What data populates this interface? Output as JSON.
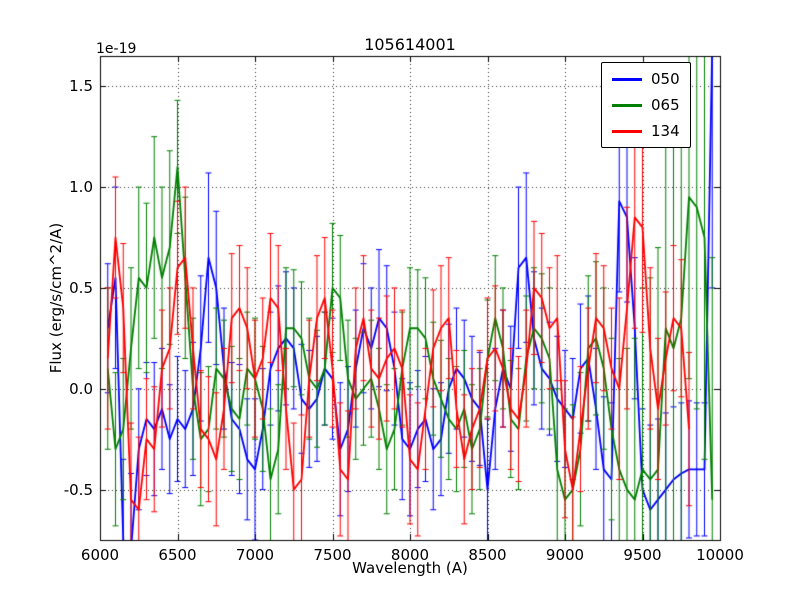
{
  "title": "105614001",
  "axes": {
    "xlabel": "Wavelength (A)",
    "ylabel": "Flux (erg/s/cm^2/A)",
    "offset_text": "1e-19"
  },
  "legend": {
    "entries": [
      {
        "label": "050",
        "color": "#0000ff"
      },
      {
        "label": "065",
        "color": "#008000"
      },
      {
        "label": "134",
        "color": "#ff0000"
      }
    ]
  },
  "chart_data": {
    "type": "line",
    "title": "105614001",
    "xlabel": "Wavelength (A)",
    "ylabel": "Flux (erg/s/cm^2/A)",
    "y_scale_factor": "1e-19",
    "xlim": [
      6000,
      10000
    ],
    "ylim": [
      -0.75,
      1.65
    ],
    "xticks": [
      6000,
      6500,
      7000,
      7500,
      8000,
      8500,
      9000,
      9500,
      10000
    ],
    "yticks": [
      -0.5,
      0.0,
      0.5,
      1.0,
      1.5
    ],
    "grid": true,
    "grid_style": "dotted",
    "legend_position": "upper right",
    "error_bars": true,
    "series": [
      {
        "name": "050",
        "color": "#0000ff",
        "x": [
          6050,
          6100,
          6150,
          6200,
          6250,
          6300,
          6350,
          6400,
          6450,
          6500,
          6550,
          6600,
          6650,
          6700,
          6750,
          6800,
          6850,
          6900,
          6950,
          7000,
          7050,
          7100,
          7150,
          7200,
          7250,
          7300,
          7350,
          7400,
          7450,
          7500,
          7550,
          7600,
          7650,
          7700,
          7750,
          7800,
          7850,
          7900,
          7950,
          8000,
          8050,
          8100,
          8150,
          8200,
          8250,
          8300,
          8350,
          8400,
          8450,
          8500,
          8550,
          8600,
          8650,
          8700,
          8750,
          8800,
          8850,
          8900,
          8950,
          9000,
          9050,
          9100,
          9150,
          9200,
          9250,
          9300,
          9350,
          9400,
          9450,
          9500,
          9550,
          9600,
          9650,
          9700,
          9750,
          9800,
          9850,
          9900,
          9950
        ],
        "y": [
          0.3,
          0.55,
          -0.75,
          -0.8,
          -0.3,
          -0.15,
          -0.2,
          -0.1,
          -0.25,
          -0.15,
          -0.2,
          -0.1,
          0.2,
          0.65,
          0.5,
          0.1,
          -0.15,
          -0.2,
          -0.35,
          -0.4,
          -0.2,
          0.1,
          0.2,
          0.25,
          0.2,
          -0.05,
          -0.1,
          -0.05,
          0.1,
          0.05,
          -0.3,
          -0.2,
          0.1,
          0.3,
          0.2,
          0.35,
          0.3,
          0.1,
          -0.25,
          -0.3,
          -0.2,
          -0.15,
          -0.3,
          -0.25,
          0.0,
          0.1,
          0.05,
          -0.05,
          -0.1,
          -0.5,
          -0.1,
          0.1,
          0.0,
          0.6,
          0.65,
          0.25,
          0.1,
          0.05,
          -0.05,
          -0.1,
          -0.15,
          0.1,
          0.15,
          -0.1,
          -0.4,
          -0.45,
          0.93,
          0.85,
          0.3,
          -0.5,
          -0.6,
          -0.55,
          -0.5,
          -0.45,
          -0.42,
          -0.4,
          -0.4,
          -0.4,
          1.7
        ],
        "yerr": [
          0.32,
          0.45,
          0.4,
          0.38,
          0.3,
          0.28,
          0.33,
          0.3,
          0.27,
          0.31,
          0.29,
          0.33,
          0.36,
          0.42,
          0.38,
          0.3,
          0.28,
          0.32,
          0.3,
          0.35,
          0.3,
          0.28,
          0.31,
          0.33,
          0.3,
          0.27,
          0.29,
          0.31,
          0.28,
          0.3,
          0.33,
          0.31,
          0.29,
          0.32,
          0.3,
          0.34,
          0.31,
          0.28,
          0.3,
          0.33,
          0.29,
          0.31,
          0.3,
          0.28,
          0.32,
          0.3,
          0.29,
          0.31,
          0.28,
          0.35,
          0.3,
          0.29,
          0.31,
          0.4,
          0.42,
          0.33,
          0.3,
          0.28,
          0.31,
          0.29,
          0.3,
          0.32,
          0.31,
          0.3,
          0.36,
          0.38,
          0.45,
          0.42,
          0.35,
          0.4,
          0.42,
          0.4,
          0.38,
          0.36,
          0.35,
          0.34,
          0.33,
          0.33,
          1.2
        ]
      },
      {
        "name": "065",
        "color": "#008000",
        "x": [
          6050,
          6100,
          6150,
          6200,
          6250,
          6300,
          6350,
          6400,
          6450,
          6500,
          6550,
          6600,
          6650,
          6700,
          6750,
          6800,
          6850,
          6900,
          6950,
          7000,
          7050,
          7100,
          7150,
          7200,
          7250,
          7300,
          7350,
          7400,
          7450,
          7500,
          7550,
          7600,
          7650,
          7700,
          7750,
          7800,
          7850,
          7900,
          7950,
          8000,
          8050,
          8100,
          8150,
          8200,
          8250,
          8300,
          8350,
          8400,
          8450,
          8500,
          8550,
          8600,
          8650,
          8700,
          8750,
          8800,
          8850,
          8900,
          8950,
          9000,
          9050,
          9100,
          9150,
          9200,
          9250,
          9300,
          9350,
          9400,
          9450,
          9500,
          9550,
          9600,
          9650,
          9700,
          9750,
          9800,
          9850,
          9900,
          9950
        ],
        "y": [
          0.1,
          -0.3,
          -0.2,
          0.2,
          0.55,
          0.5,
          0.75,
          0.55,
          0.7,
          1.1,
          0.55,
          0.0,
          -0.25,
          -0.2,
          0.1,
          0.05,
          -0.1,
          -0.15,
          0.1,
          0.05,
          -0.1,
          -0.45,
          -0.3,
          0.3,
          0.3,
          0.25,
          0.05,
          0.0,
          0.1,
          0.5,
          0.45,
          0.05,
          -0.05,
          0.0,
          0.05,
          -0.1,
          -0.3,
          -0.2,
          0.1,
          0.3,
          0.3,
          0.25,
          0.05,
          -0.05,
          -0.15,
          -0.2,
          -0.1,
          -0.3,
          -0.2,
          0.15,
          0.35,
          0.2,
          -0.15,
          -0.2,
          0.15,
          0.3,
          0.25,
          0.15,
          -0.4,
          -0.55,
          -0.5,
          -0.3,
          0.2,
          0.25,
          0.1,
          -0.2,
          -0.4,
          -0.5,
          -0.55,
          -0.4,
          -0.45,
          -0.4,
          0.3,
          0.2,
          0.35,
          0.95,
          0.9,
          0.75,
          -0.55
        ],
        "yerr": [
          0.4,
          0.38,
          0.35,
          0.4,
          0.45,
          0.42,
          0.5,
          0.45,
          0.48,
          0.33,
          0.4,
          0.35,
          0.33,
          0.31,
          0.3,
          0.29,
          0.31,
          0.3,
          0.28,
          0.3,
          0.31,
          0.35,
          0.32,
          0.3,
          0.29,
          0.28,
          0.3,
          0.29,
          0.28,
          0.32,
          0.31,
          0.29,
          0.3,
          0.28,
          0.29,
          0.3,
          0.32,
          0.3,
          0.28,
          0.3,
          0.29,
          0.3,
          0.28,
          0.29,
          0.3,
          0.31,
          0.29,
          0.32,
          0.3,
          0.29,
          0.31,
          0.3,
          0.29,
          0.3,
          0.31,
          0.3,
          0.32,
          0.35,
          0.4,
          0.45,
          0.42,
          0.38,
          0.36,
          0.38,
          0.4,
          0.45,
          0.55,
          0.7,
          0.8,
          0.9,
          1.0,
          1.1,
          1.2,
          1.1,
          1.15,
          0.9,
          1.0,
          1.1,
          1.2
        ]
      },
      {
        "name": "134",
        "color": "#ff0000",
        "x": [
          6050,
          6100,
          6150,
          6200,
          6250,
          6300,
          6350,
          6400,
          6450,
          6500,
          6550,
          6600,
          6650,
          6700,
          6750,
          6800,
          6850,
          6900,
          6950,
          7000,
          7050,
          7100,
          7150,
          7200,
          7250,
          7300,
          7350,
          7400,
          7450,
          7500,
          7550,
          7600,
          7650,
          7700,
          7750,
          7800,
          7850,
          7900,
          7950,
          8000,
          8050,
          8100,
          8150,
          8200,
          8250,
          8300,
          8350,
          8400,
          8450,
          8500,
          8550,
          8600,
          8650,
          8700,
          8750,
          8800,
          8850,
          8900,
          8950,
          9000,
          9050,
          9100,
          9150,
          9200,
          9250,
          9300,
          9350,
          9400,
          9450,
          9500,
          9550,
          9600,
          9650,
          9700,
          9750,
          9800
        ],
        "y": [
          0.15,
          0.75,
          0.4,
          -0.55,
          -0.6,
          -0.25,
          -0.3,
          0.1,
          0.2,
          0.6,
          0.65,
          0.2,
          -0.2,
          -0.25,
          -0.35,
          -0.1,
          0.35,
          0.4,
          0.3,
          0.05,
          0.15,
          0.45,
          0.4,
          -0.1,
          -0.5,
          -0.45,
          0.05,
          0.35,
          0.45,
          0.1,
          -0.4,
          -0.45,
          0.2,
          0.35,
          0.1,
          0.05,
          0.15,
          0.2,
          0.1,
          -0.35,
          -0.4,
          -0.1,
          0.2,
          0.3,
          0.35,
          -0.1,
          -0.35,
          -0.2,
          -0.1,
          0.15,
          0.2,
          0.1,
          -0.1,
          -0.15,
          0.1,
          0.5,
          0.45,
          0.3,
          0.35,
          -0.3,
          -0.5,
          -0.2,
          0.1,
          0.35,
          0.3,
          0.1,
          0.0,
          0.4,
          0.85,
          0.8,
          0.2,
          -0.1,
          0.15,
          0.35,
          0.3,
          -0.2
        ],
        "yerr": [
          0.35,
          0.3,
          0.32,
          0.38,
          0.36,
          0.3,
          0.31,
          0.29,
          0.3,
          0.33,
          0.35,
          0.3,
          0.29,
          0.31,
          0.33,
          0.3,
          0.32,
          0.31,
          0.3,
          0.29,
          0.3,
          0.32,
          0.31,
          0.3,
          0.33,
          0.32,
          0.29,
          0.31,
          0.3,
          0.29,
          0.33,
          0.34,
          0.3,
          0.31,
          0.29,
          0.3,
          0.31,
          0.3,
          0.29,
          0.32,
          0.33,
          0.3,
          0.29,
          0.31,
          0.3,
          0.29,
          0.32,
          0.3,
          0.29,
          0.3,
          0.31,
          0.29,
          0.3,
          0.31,
          0.29,
          0.33,
          0.32,
          0.3,
          0.31,
          0.34,
          0.36,
          0.31,
          0.3,
          0.32,
          0.31,
          0.3,
          0.45,
          0.5,
          0.55,
          0.52,
          0.4,
          0.35,
          0.33,
          0.36,
          0.34,
          0.38
        ]
      }
    ]
  }
}
